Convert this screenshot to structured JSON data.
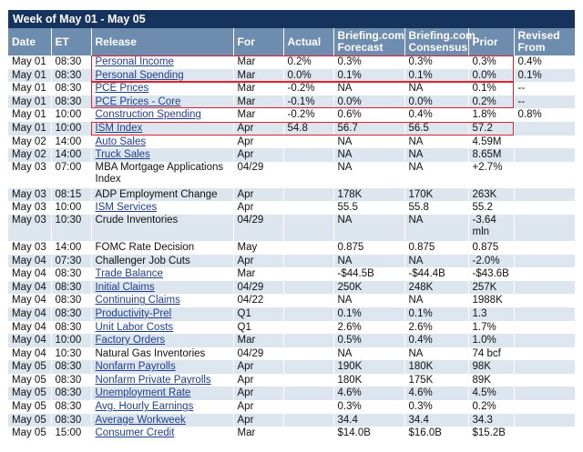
{
  "title": "Week of May 01 - May 05",
  "columns": [
    "Date",
    "ET",
    "Release",
    "For",
    "Actual",
    "Briefing.com Forecast",
    "Briefing.com Consensus",
    "Prior",
    "Revised From"
  ],
  "rows": [
    {
      "date": "May 01",
      "et": "08:30",
      "release": "Personal Income",
      "link": true,
      "for": "Mar",
      "actual": "0.2%",
      "forecast": "0.3%",
      "consensus": "0.3%",
      "prior": "0.3%",
      "revised": "0.4%"
    },
    {
      "date": "May 01",
      "et": "08:30",
      "release": "Personal Spending",
      "link": true,
      "for": "Mar",
      "actual": "0.0%",
      "forecast": "0.1%",
      "consensus": "0.1%",
      "prior": "0.0%",
      "revised": "0.1%"
    },
    {
      "date": "May 01",
      "et": "08:30",
      "release": "PCE Prices",
      "link": true,
      "for": "Mar",
      "actual": "-0.2%",
      "forecast": "NA",
      "consensus": "NA",
      "prior": "0.1%",
      "revised": "--"
    },
    {
      "date": "May 01",
      "et": "08:30",
      "release": "PCE Prices - Core",
      "link": true,
      "for": "Mar",
      "actual": "-0.1%",
      "forecast": "0.0%",
      "consensus": "0.0%",
      "prior": "0.2%",
      "revised": "--"
    },
    {
      "date": "May 01",
      "et": "10:00",
      "release": "Construction Spending",
      "link": true,
      "for": "Mar",
      "actual": "-0.2%",
      "forecast": "0.6%",
      "consensus": "0.4%",
      "prior": "1.8%",
      "revised": "0.8%"
    },
    {
      "date": "May 01",
      "et": "10:00",
      "release": "ISM Index",
      "link": true,
      "for": "Apr",
      "actual": "54.8",
      "forecast": "56.7",
      "consensus": "56.5",
      "prior": "57.2",
      "revised": ""
    },
    {
      "date": "May 02",
      "et": "14:00",
      "release": "Auto Sales",
      "link": true,
      "for": "Apr",
      "actual": "",
      "forecast": "NA",
      "consensus": "NA",
      "prior": "4.59M",
      "revised": ""
    },
    {
      "date": "May 02",
      "et": "14:00",
      "release": "Truck Sales",
      "link": true,
      "for": "Apr",
      "actual": "",
      "forecast": "NA",
      "consensus": "NA",
      "prior": "8.65M",
      "revised": ""
    },
    {
      "date": "May 03",
      "et": "07:00",
      "release": "MBA Mortgage Applications Index",
      "link": false,
      "for": "04/29",
      "actual": "",
      "forecast": "NA",
      "consensus": "NA",
      "prior": "+2.7%",
      "revised": "",
      "tall": true
    },
    {
      "date": "May 03",
      "et": "08:15",
      "release": "ADP Employment Change",
      "link": false,
      "for": "Apr",
      "actual": "",
      "forecast": "178K",
      "consensus": "170K",
      "prior": "263K",
      "revised": ""
    },
    {
      "date": "May 03",
      "et": "10:00",
      "release": "ISM Services",
      "link": true,
      "for": "Apr",
      "actual": "",
      "forecast": "55.5",
      "consensus": "55.8",
      "prior": "55.2",
      "revised": ""
    },
    {
      "date": "May 03",
      "et": "10:30",
      "release": "Crude Inventories",
      "link": false,
      "for": "04/29",
      "actual": "",
      "forecast": "NA",
      "consensus": "NA",
      "prior": "-3.64 mln",
      "revised": "",
      "tall": true
    },
    {
      "date": "May 03",
      "et": "14:00",
      "release": "FOMC Rate Decision",
      "link": false,
      "for": "May",
      "actual": "",
      "forecast": "0.875",
      "consensus": "0.875",
      "prior": "0.875",
      "revised": ""
    },
    {
      "date": "May 04",
      "et": "07:30",
      "release": "Challenger Job Cuts",
      "link": false,
      "for": "Apr",
      "actual": "",
      "forecast": "NA",
      "consensus": "NA",
      "prior": "-2.0%",
      "revised": ""
    },
    {
      "date": "May 04",
      "et": "08:30",
      "release": "Trade Balance",
      "link": true,
      "for": "Mar",
      "actual": "",
      "forecast": "-$44.5B",
      "consensus": "-$44.4B",
      "prior": "-$43.6B",
      "revised": ""
    },
    {
      "date": "May 04",
      "et": "08:30",
      "release": "Initial Claims",
      "link": true,
      "for": "04/29",
      "actual": "",
      "forecast": "250K",
      "consensus": "248K",
      "prior": "257K",
      "revised": ""
    },
    {
      "date": "May 04",
      "et": "08:30",
      "release": "Continuing Claims",
      "link": true,
      "for": "04/22",
      "actual": "",
      "forecast": "NA",
      "consensus": "NA",
      "prior": "1988K",
      "revised": ""
    },
    {
      "date": "May 04",
      "et": "08:30",
      "release": "Productivity-Prel",
      "link": true,
      "for": "Q1",
      "actual": "",
      "forecast": "0.1%",
      "consensus": "0.1%",
      "prior": "1.3",
      "revised": ""
    },
    {
      "date": "May 04",
      "et": "08:30",
      "release": "Unit Labor Costs",
      "link": true,
      "for": "Q1",
      "actual": "",
      "forecast": "2.6%",
      "consensus": "2.6%",
      "prior": "1.7%",
      "revised": ""
    },
    {
      "date": "May 04",
      "et": "10:00",
      "release": "Factory Orders",
      "link": true,
      "for": "Mar",
      "actual": "",
      "forecast": "0.5%",
      "consensus": "0.4%",
      "prior": "1.0%",
      "revised": ""
    },
    {
      "date": "May 04",
      "et": "10:30",
      "release": "Natural Gas Inventories",
      "link": false,
      "for": "04/29",
      "actual": "",
      "forecast": "NA",
      "consensus": "NA",
      "prior": "74 bcf",
      "revised": ""
    },
    {
      "date": "May 05",
      "et": "08:30",
      "release": "Nonfarm Payrolls",
      "link": true,
      "for": "Apr",
      "actual": "",
      "forecast": "190K",
      "consensus": "180K",
      "prior": "98K",
      "revised": ""
    },
    {
      "date": "May 05",
      "et": "08:30",
      "release": "Nonfarm Private Payrolls",
      "link": true,
      "for": "Apr",
      "actual": "",
      "forecast": "180K",
      "consensus": "175K",
      "prior": "89K",
      "revised": ""
    },
    {
      "date": "May 05",
      "et": "08:30",
      "release": "Unemployment Rate",
      "link": true,
      "for": "Apr",
      "actual": "",
      "forecast": "4.6%",
      "consensus": "4.6%",
      "prior": "4.5%",
      "revised": ""
    },
    {
      "date": "May 05",
      "et": "08:30",
      "release": "Avg. Hourly Earnings",
      "link": true,
      "for": "Apr",
      "actual": "",
      "forecast": "0.3%",
      "consensus": "0.3%",
      "prior": "0.2%",
      "revised": ""
    },
    {
      "date": "May 05",
      "et": "08:30",
      "release": "Average Workweek",
      "link": true,
      "for": "Apr",
      "actual": "",
      "forecast": "34.4",
      "consensus": "34.4",
      "prior": "34.3",
      "revised": ""
    },
    {
      "date": "May 05",
      "et": "15:00",
      "release": "Consumer Credit",
      "link": true,
      "for": "Mar",
      "actual": "",
      "forecast": "$14.0B",
      "consensus": "$16.0B",
      "prior": "$15.2B",
      "revised": ""
    }
  ],
  "colors": {
    "title_bg": "#15335c",
    "header_bg": "#6d8cae",
    "alt_row": "#dde6ee",
    "highlight": "#e0222e",
    "link": "#1f3d8f"
  }
}
